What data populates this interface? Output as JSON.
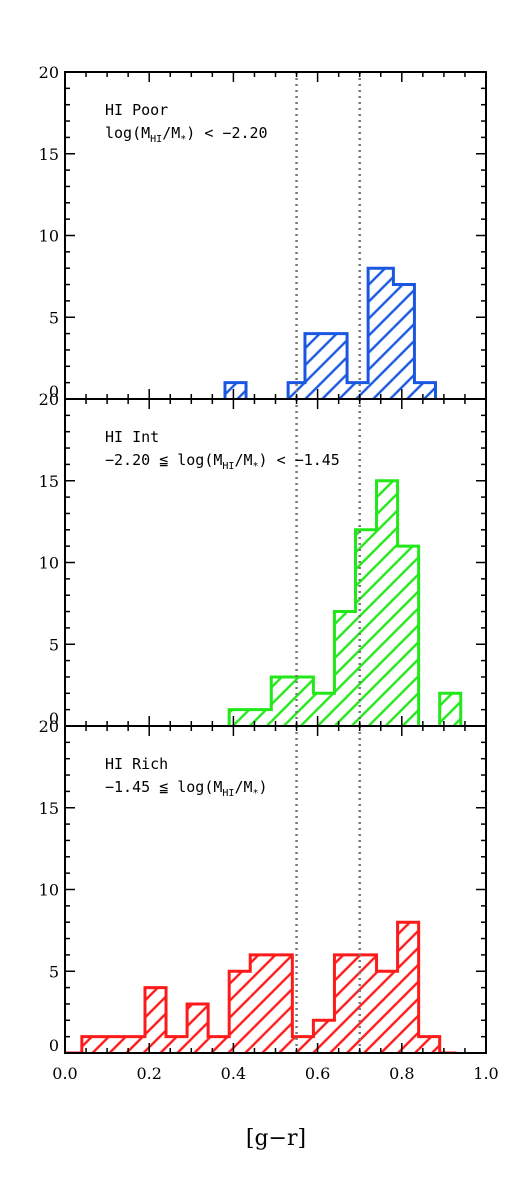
{
  "chart_data": {
    "type": "bar",
    "xlabel": "[g−r]",
    "xlim": [
      0.0,
      1.0
    ],
    "x_ticks": [
      "0.0",
      "0.2",
      "0.4",
      "0.6",
      "0.8",
      "1.0"
    ],
    "y_ticks": [
      "0",
      "5",
      "10",
      "15",
      "20"
    ],
    "ylim": [
      0,
      20
    ],
    "bin_edges": [
      0.0,
      0.05,
      0.1,
      0.15,
      0.2,
      0.25,
      0.3,
      0.35,
      0.4,
      0.45,
      0.5,
      0.55,
      0.6,
      0.65,
      0.7,
      0.75,
      0.8,
      0.85,
      0.9,
      0.95
    ],
    "reference_lines_x": [
      0.55,
      0.7
    ],
    "panels": [
      {
        "label_line1": "HI Poor",
        "label_line2": {
          "prefix": "log(M",
          "sub1": "HI",
          "mid": "/M",
          "sub2": "*",
          "suffix": ") < −2.20"
        },
        "color": "#1a57e0",
        "bins": [
          {
            "x0": 0.38,
            "x1": 0.43,
            "count": 1
          },
          {
            "x0": 0.53,
            "x1": 0.57,
            "count": 1
          },
          {
            "x0": 0.57,
            "x1": 0.67,
            "count": 4
          },
          {
            "x0": 0.67,
            "x1": 0.72,
            "count": 1
          },
          {
            "x0": 0.72,
            "x1": 0.78,
            "count": 8
          },
          {
            "x0": 0.78,
            "x1": 0.83,
            "count": 7
          },
          {
            "x0": 0.83,
            "x1": 0.88,
            "count": 1
          }
        ]
      },
      {
        "label_line1": "HI Int",
        "label_line2": {
          "prefix": "−2.20 ≦ log(M",
          "sub1": "HI",
          "mid": "/M",
          "sub2": "*",
          "suffix": ") < −1.45"
        },
        "color": "#22e81a",
        "bins": [
          {
            "x0": 0.39,
            "x1": 0.49,
            "count": 1
          },
          {
            "x0": 0.49,
            "x1": 0.59,
            "count": 3
          },
          {
            "x0": 0.59,
            "x1": 0.64,
            "count": 2
          },
          {
            "x0": 0.64,
            "x1": 0.69,
            "count": 7
          },
          {
            "x0": 0.69,
            "x1": 0.74,
            "count": 12
          },
          {
            "x0": 0.74,
            "x1": 0.79,
            "count": 15
          },
          {
            "x0": 0.79,
            "x1": 0.84,
            "count": 11
          },
          {
            "x0": 0.89,
            "x1": 0.94,
            "count": 2
          }
        ]
      },
      {
        "label_line1": "HI Rich",
        "label_line2": {
          "prefix": "−1.45 ≦ log(M",
          "sub1": "HI",
          "mid": "/M",
          "sub2": "*",
          "suffix": ")"
        },
        "color": "#ff1a1a",
        "bins": [
          {
            "x0": 0.0,
            "x1": 0.04,
            "count": 0
          },
          {
            "x0": 0.04,
            "x1": 0.19,
            "count": 1
          },
          {
            "x0": 0.19,
            "x1": 0.24,
            "count": 4
          },
          {
            "x0": 0.24,
            "x1": 0.29,
            "count": 1
          },
          {
            "x0": 0.29,
            "x1": 0.34,
            "count": 3
          },
          {
            "x0": 0.34,
            "x1": 0.39,
            "count": 1
          },
          {
            "x0": 0.39,
            "x1": 0.44,
            "count": 5
          },
          {
            "x0": 0.44,
            "x1": 0.54,
            "count": 6
          },
          {
            "x0": 0.54,
            "x1": 0.59,
            "count": 1
          },
          {
            "x0": 0.59,
            "x1": 0.64,
            "count": 2
          },
          {
            "x0": 0.64,
            "x1": 0.74,
            "count": 6
          },
          {
            "x0": 0.74,
            "x1": 0.79,
            "count": 5
          },
          {
            "x0": 0.79,
            "x1": 0.84,
            "count": 8
          },
          {
            "x0": 0.84,
            "x1": 0.89,
            "count": 1
          },
          {
            "x0": 0.89,
            "x1": 0.93,
            "count": 0
          }
        ]
      }
    ]
  }
}
